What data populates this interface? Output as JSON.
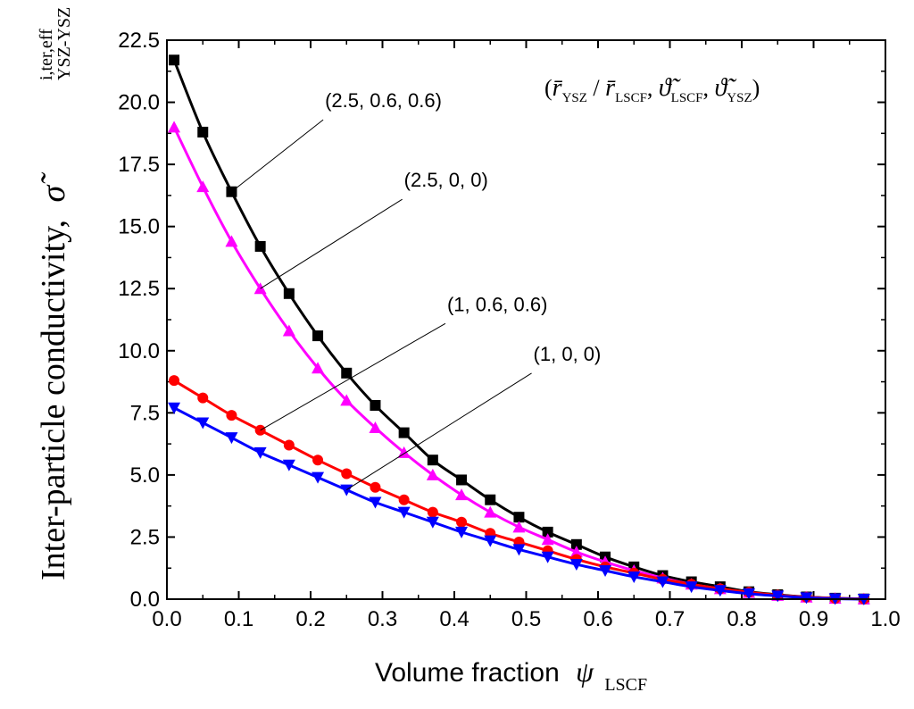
{
  "chart_data": {
    "type": "line",
    "title": "",
    "xlabel": "Volume fraction",
    "xlabel_symbol": "ψ",
    "xlabel_subscript": "LSCF",
    "ylabel": "Inter-particle conductivity,",
    "ylabel_symbol": "σ̃",
    "ylabel_superscript": "i,ter,eff",
    "ylabel_subscript": "YSZ-YSZ",
    "xlim": [
      0.0,
      1.0
    ],
    "ylim": [
      0.0,
      22.5
    ],
    "xticks": [
      "0.0",
      "0.1",
      "0.2",
      "0.3",
      "0.4",
      "0.5",
      "0.6",
      "0.7",
      "0.8",
      "0.9",
      "1.0"
    ],
    "yticks": [
      "0.0",
      "2.5",
      "5.0",
      "7.5",
      "10.0",
      "12.5",
      "15.0",
      "17.5",
      "20.0",
      "22.5"
    ],
    "legend": {
      "position": "top-right",
      "parts": [
        {
          "text": "(",
          "style": "plain"
        },
        {
          "text": "r̄",
          "style": "italic"
        },
        {
          "text": "YSZ",
          "style": "sub"
        },
        {
          "text": " / ",
          "style": "plain"
        },
        {
          "text": "r̄",
          "style": "italic"
        },
        {
          "text": "LSCF",
          "style": "sub"
        },
        {
          "text": ", ",
          "style": "plain"
        },
        {
          "text": "ϑ̃",
          "style": "italic"
        },
        {
          "text": "LSCF",
          "style": "sub"
        },
        {
          "text": ", ",
          "style": "plain"
        },
        {
          "text": "ϑ̃",
          "style": "italic"
        },
        {
          "text": "YSZ",
          "style": "sub"
        },
        {
          "text": ")",
          "style": "plain"
        }
      ]
    },
    "x": [
      0.01,
      0.05,
      0.09,
      0.13,
      0.17,
      0.21,
      0.25,
      0.29,
      0.33,
      0.37,
      0.41,
      0.45,
      0.49,
      0.53,
      0.57,
      0.61,
      0.65,
      0.69,
      0.73,
      0.77,
      0.81,
      0.85,
      0.89,
      0.93,
      0.97
    ],
    "series": [
      {
        "name": "(2.5, 0.6, 0.6)",
        "color": "#000000",
        "marker": "square",
        "label_xy": [
          0.22,
          19.8
        ],
        "anchor_xy": [
          0.09,
          16.4
        ],
        "values": [
          21.7,
          18.8,
          16.4,
          14.2,
          12.3,
          10.6,
          9.1,
          7.8,
          6.7,
          5.6,
          4.8,
          4.0,
          3.3,
          2.7,
          2.2,
          1.7,
          1.3,
          0.95,
          0.7,
          0.5,
          0.3,
          0.18,
          0.09,
          0.04,
          0.01
        ]
      },
      {
        "name": "(2.5, 0, 0)",
        "color": "#ff00ff",
        "marker": "triangle-up",
        "label_xy": [
          0.33,
          16.6
        ],
        "anchor_xy": [
          0.13,
          12.5
        ],
        "values": [
          19.0,
          16.6,
          14.4,
          12.5,
          10.8,
          9.3,
          8.0,
          6.9,
          5.9,
          5.0,
          4.2,
          3.5,
          2.9,
          2.4,
          1.9,
          1.5,
          1.15,
          0.85,
          0.6,
          0.42,
          0.27,
          0.15,
          0.08,
          0.03,
          0.01
        ]
      },
      {
        "name": "(1, 0.6, 0.6)",
        "color": "#ff0000",
        "marker": "circle",
        "label_xy": [
          0.39,
          11.6
        ],
        "anchor_xy": [
          0.13,
          6.8
        ],
        "values": [
          8.8,
          8.1,
          7.4,
          6.8,
          6.2,
          5.6,
          5.05,
          4.5,
          4.0,
          3.5,
          3.1,
          2.65,
          2.3,
          1.95,
          1.6,
          1.3,
          1.05,
          0.8,
          0.6,
          0.42,
          0.28,
          0.16,
          0.08,
          0.03,
          0.01
        ]
      },
      {
        "name": "(1, 0, 0)",
        "color": "#0000ff",
        "marker": "triangle-down",
        "label_xy": [
          0.51,
          9.6
        ],
        "anchor_xy": [
          0.25,
          4.4
        ],
        "values": [
          7.7,
          7.1,
          6.5,
          5.9,
          5.4,
          4.9,
          4.4,
          3.9,
          3.5,
          3.1,
          2.7,
          2.35,
          2.0,
          1.7,
          1.4,
          1.15,
          0.9,
          0.7,
          0.5,
          0.35,
          0.22,
          0.13,
          0.06,
          0.02,
          0.0
        ]
      }
    ]
  }
}
